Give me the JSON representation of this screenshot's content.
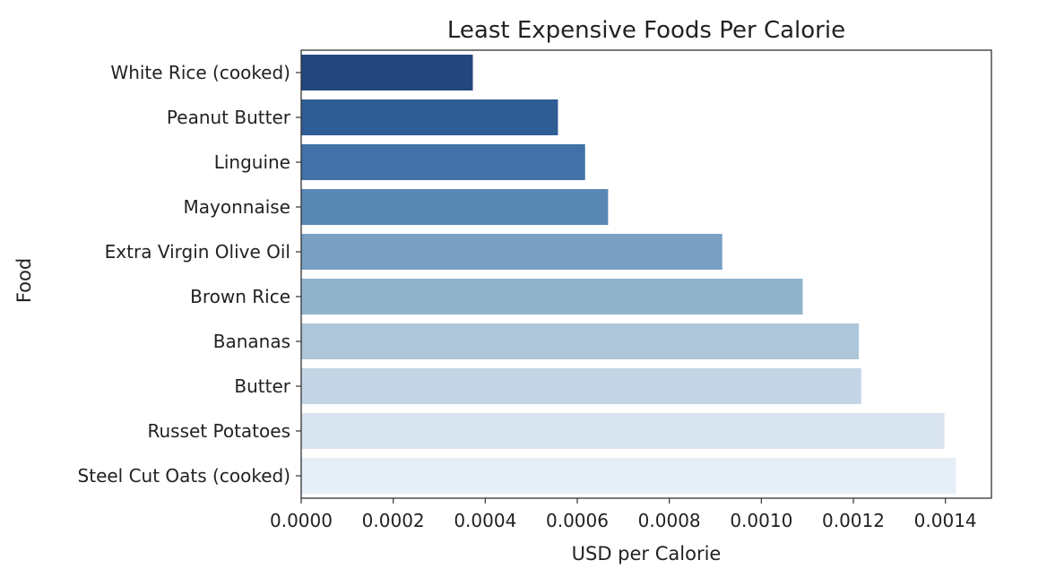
{
  "chart_data": {
    "type": "bar",
    "orientation": "horizontal",
    "title": "Least Expensive Foods Per Calorie",
    "xlabel": "USD per Calorie",
    "ylabel": "Food",
    "xlim": [
      0,
      0.0015
    ],
    "x_ticks": [
      "0.0000",
      "0.0002",
      "0.0004",
      "0.0006",
      "0.0008",
      "0.0010",
      "0.0012",
      "0.0014"
    ],
    "x_tick_values": [
      0,
      0.0002,
      0.0004,
      0.0006,
      0.0008,
      0.001,
      0.0012,
      0.0014
    ],
    "grid": false,
    "legend": "none",
    "categories": [
      "White Rice (cooked)",
      "Peanut Butter",
      "Linguine",
      "Mayonnaise",
      "Extra Virgin Olive Oil",
      "Brown Rice",
      "Bananas",
      "Butter",
      "Russet Potatoes",
      "Steel Cut Oats (cooked)"
    ],
    "values": [
      0.000373,
      0.000558,
      0.000617,
      0.000667,
      0.000915,
      0.00109,
      0.001212,
      0.001217,
      0.001398,
      0.001423
    ],
    "colors": [
      "#23477c",
      "#2e5c94",
      "#4171a6",
      "#5a88b4",
      "#799fc3",
      "#91b4cd",
      "#adc6d9",
      "#c3d5e5",
      "#d8e4ef",
      "#e6eef7"
    ]
  }
}
